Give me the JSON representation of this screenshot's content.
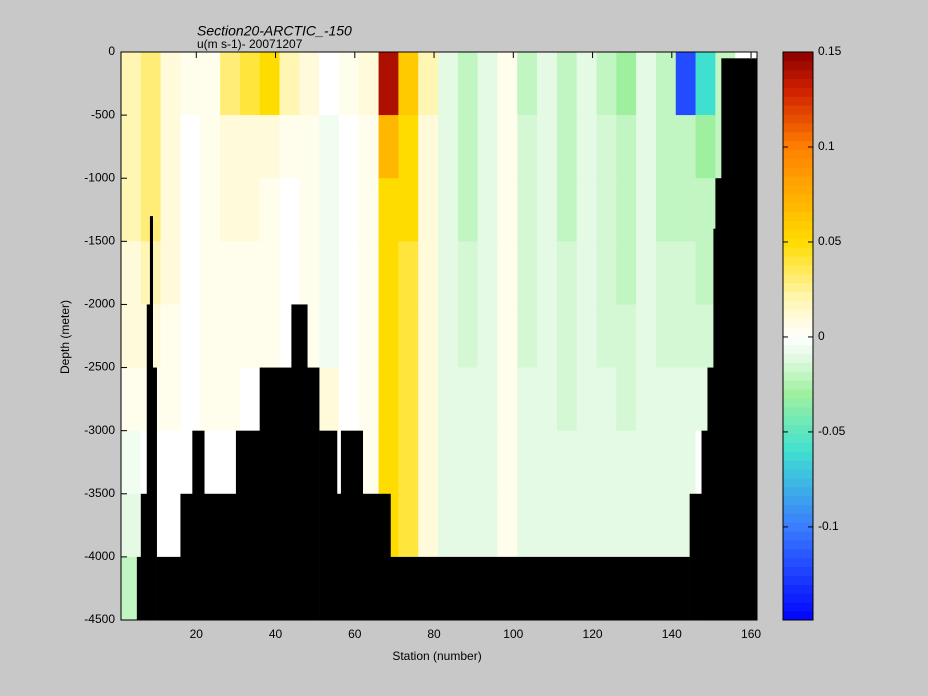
{
  "chart_data": {
    "type": "heatmap",
    "title": "Section20-ARCTIC_-150",
    "subtitle": "u(m s-1)- 20071207",
    "xlabel": "Station (number)",
    "ylabel": "Depth (meter)",
    "xlim": [
      1,
      161.5
    ],
    "ylim": [
      -4500,
      0
    ],
    "xticks": [
      20,
      40,
      60,
      80,
      100,
      120,
      140,
      160
    ],
    "yticks": [
      0,
      -500,
      -1000,
      -1500,
      -2000,
      -2500,
      -3000,
      -3500,
      -4000,
      -4500
    ],
    "clim": [
      -0.149,
      0.15
    ],
    "cticks": [
      0.15,
      0.1,
      0.05,
      0,
      -0.05,
      -0.1
    ],
    "colormap": [
      {
        "value": -0.15,
        "color": "#0000ff"
      },
      {
        "value": -0.1,
        "color": "#3a7dff"
      },
      {
        "value": -0.06,
        "color": "#40e0d0"
      },
      {
        "value": -0.03,
        "color": "#9ef09e"
      },
      {
        "value": -0.01,
        "color": "#e4fae4"
      },
      {
        "value": 0,
        "color": "#ffffff"
      },
      {
        "value": 0.02,
        "color": "#fff6b4"
      },
      {
        "value": 0.05,
        "color": "#ffdc00"
      },
      {
        "value": 0.1,
        "color": "#ff8000"
      },
      {
        "value": 0.13,
        "color": "#d02000"
      },
      {
        "value": 0.15,
        "color": "#8b0000"
      }
    ],
    "x": [
      3.5,
      8.5,
      13.5,
      18.5,
      23.5,
      28.5,
      33.5,
      38.5,
      43.5,
      48.5,
      53.5,
      58.5,
      63.5,
      68.5,
      73.5,
      78.5,
      83.5,
      88.5,
      93.5,
      98.5,
      103.5,
      108.5,
      113.5,
      118.5,
      123.5,
      128.5,
      133.5,
      138.5,
      143.5,
      148.5,
      153.5,
      158.5
    ],
    "y": [
      -250,
      -750,
      -1250,
      -1750,
      -2250,
      -2750,
      -3250,
      -3750,
      -4250
    ],
    "z": [
      [
        0.02,
        0.03,
        0.01,
        0.005,
        0.005,
        0.03,
        0.04,
        0.05,
        0.02,
        0.01,
        0,
        0.005,
        0.01,
        0.14,
        0.06,
        0.02,
        -0.01,
        -0.02,
        -0.01,
        0.005,
        -0.02,
        -0.01,
        -0.02,
        -0.01,
        -0.02,
        -0.03,
        -0.01,
        -0.02,
        -0.12,
        -0.06,
        -0.02,
        0
      ],
      [
        0.02,
        0.03,
        0.01,
        0,
        0.005,
        0.01,
        0.01,
        0.01,
        0.005,
        0.005,
        -0.005,
        0,
        0.005,
        0.07,
        0.05,
        0.01,
        -0.01,
        -0.02,
        -0.01,
        0.005,
        -0.015,
        -0.01,
        -0.02,
        -0.01,
        -0.015,
        -0.02,
        -0.01,
        -0.02,
        -0.02,
        -0.03,
        -0.02,
        0
      ],
      [
        0.02,
        0.03,
        0.01,
        0,
        0.005,
        0.01,
        0.01,
        0.005,
        0,
        0.005,
        -0.005,
        0,
        0.005,
        0.05,
        0.05,
        0.01,
        -0.01,
        -0.02,
        -0.01,
        0.005,
        -0.015,
        -0.01,
        -0.02,
        -0.01,
        -0.015,
        -0.02,
        -0.01,
        -0.02,
        -0.02,
        -0.02,
        -0.02,
        0
      ],
      [
        0.01,
        0.02,
        0.01,
        0,
        0.005,
        0.005,
        0.005,
        0.005,
        0,
        0.005,
        -0.005,
        0,
        0.005,
        0.05,
        0.04,
        0.01,
        -0.01,
        -0.015,
        -0.01,
        0.005,
        -0.015,
        -0.01,
        -0.015,
        -0.01,
        -0.015,
        -0.02,
        -0.01,
        -0.015,
        -0.015,
        -0.02,
        0,
        0
      ],
      [
        0.01,
        0.01,
        0.005,
        0,
        0.005,
        0.005,
        0.005,
        0.005,
        0,
        0.005,
        -0.005,
        0,
        0.005,
        0.05,
        0.04,
        0.01,
        -0.01,
        -0.015,
        -0.01,
        0.005,
        -0.015,
        -0.01,
        -0.015,
        -0.01,
        -0.015,
        -0.015,
        -0.01,
        -0.015,
        -0.015,
        -0.015,
        0,
        0
      ],
      [
        0.005,
        0.005,
        0.005,
        0,
        0.005,
        0.005,
        0,
        0,
        0,
        0.005,
        0.01,
        0,
        0.005,
        0.05,
        0.04,
        0.01,
        -0.01,
        -0.01,
        -0.01,
        0.005,
        -0.01,
        -0.01,
        -0.015,
        -0.01,
        -0.01,
        -0.015,
        -0.01,
        -0.01,
        -0.01,
        -0.01,
        0,
        0
      ],
      [
        -0.005,
        0,
        0,
        0,
        0,
        0,
        0,
        0,
        0,
        0,
        0,
        0,
        0.005,
        0.05,
        0.04,
        0.01,
        -0.01,
        -0.01,
        -0.01,
        0.005,
        -0.01,
        -0.01,
        -0.01,
        -0.01,
        -0.01,
        -0.01,
        -0.01,
        -0.01,
        -0.01,
        0,
        0,
        0
      ],
      [
        -0.01,
        0,
        0,
        0,
        0,
        0,
        0,
        0,
        0,
        0,
        0,
        0,
        0,
        0.05,
        0.04,
        0.01,
        -0.01,
        -0.01,
        -0.01,
        0.005,
        -0.01,
        -0.01,
        -0.01,
        -0.01,
        -0.01,
        -0.01,
        -0.01,
        -0.01,
        -0.01,
        0,
        0,
        0
      ],
      [
        -0.02,
        0,
        0,
        0,
        0,
        0,
        0,
        0,
        0,
        0,
        0,
        0,
        0,
        0,
        0,
        0,
        0,
        0,
        0,
        0,
        0,
        0,
        0,
        0,
        0,
        0,
        0,
        0,
        0,
        0,
        0,
        0
      ]
    ],
    "bathymetry": {
      "color": "#000000",
      "edges": [
        5,
        6,
        7.5,
        8.3,
        9,
        10,
        16,
        19,
        22,
        30,
        36,
        44,
        48,
        51,
        55.5,
        56.5,
        62,
        69,
        144.5,
        147.5,
        149,
        150.5,
        151,
        152.5,
        161.5
      ],
      "depth": [
        -4000,
        -3500,
        -2000,
        -1300,
        -2500,
        -4000,
        -3500,
        -3000,
        -3500,
        -3000,
        -2500,
        -2000,
        -2500,
        -3000,
        -3500,
        -3000,
        -3500,
        -4000,
        -3500,
        -3000,
        -2500,
        -1400,
        -1000,
        -50
      ]
    }
  }
}
